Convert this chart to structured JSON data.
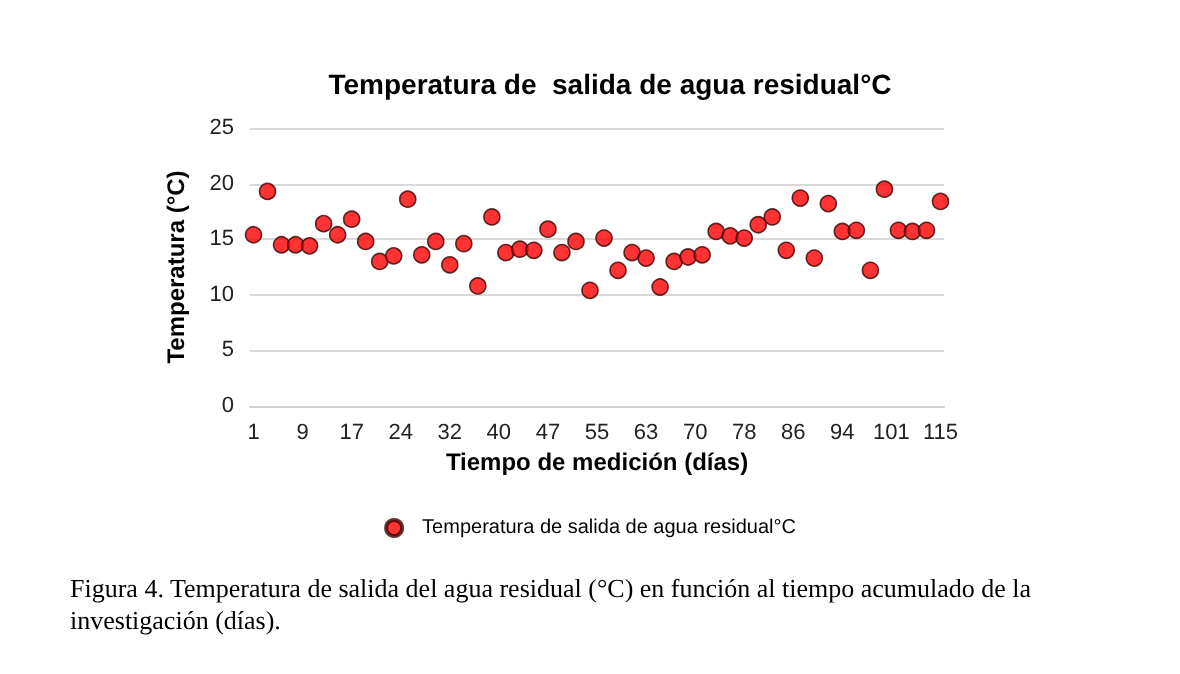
{
  "chart_data": {
    "type": "scatter",
    "title": "Temperatura de  salida de agua residual°C",
    "xlabel": "Tiempo de medición (días)",
    "ylabel": "Temperatura (°C)",
    "categories": [
      "1",
      null,
      null,
      null,
      null,
      null,
      null,
      "9",
      null,
      null,
      null,
      null,
      null,
      null,
      "17",
      null,
      null,
      null,
      null,
      null,
      null,
      "24",
      null,
      null,
      null,
      null,
      null,
      null,
      "32",
      null,
      null,
      null,
      null,
      null,
      null,
      "40",
      null,
      null,
      null,
      null,
      null,
      null,
      "47",
      null,
      null,
      null,
      null,
      null,
      null,
      "55",
      null,
      null,
      null,
      null,
      null,
      null,
      "63",
      null,
      null,
      null,
      null,
      null,
      null,
      "70",
      null,
      null,
      null,
      null,
      null,
      null,
      "78",
      null,
      null,
      null,
      null,
      null,
      null,
      "86",
      null,
      null,
      null,
      null,
      null,
      null,
      "94",
      null,
      null,
      null,
      null,
      null,
      null,
      "101",
      null,
      null,
      null,
      null,
      null,
      null,
      "115"
    ],
    "series": [
      {
        "name": "Temperatura de salida de agua residual°C",
        "color": "#ff0000",
        "values": [
          15.4,
          null,
          19.3,
          null,
          14.5,
          null,
          14.5,
          null,
          14.4,
          null,
          16.4,
          null,
          15.4,
          null,
          16.8,
          null,
          14.8,
          null,
          13.0,
          null,
          13.5,
          null,
          18.6,
          null,
          13.6,
          null,
          14.8,
          null,
          12.7,
          null,
          14.6,
          null,
          10.8,
          null,
          17.0,
          null,
          13.8,
          null,
          14.1,
          null,
          14.0,
          null,
          15.9,
          null,
          13.8,
          null,
          14.8,
          null,
          10.4,
          null,
          15.1,
          null,
          12.2,
          null,
          13.8,
          null,
          13.3,
          null,
          10.7,
          null,
          13.0,
          null,
          13.4,
          null,
          13.6,
          null,
          15.7,
          null,
          15.3,
          null,
          15.1,
          null,
          16.3,
          null,
          17.0,
          null,
          14.0,
          null,
          18.7,
          null,
          13.3,
          null,
          18.2,
          null,
          15.7,
          null,
          15.8,
          null,
          12.2,
          null,
          19.5,
          null,
          15.8,
          null,
          15.7,
          null,
          15.8,
          null,
          18.4
        ]
      }
    ],
    "ylim": [
      0,
      25
    ],
    "yticks": [
      0,
      5,
      10,
      15,
      20,
      25
    ],
    "grid": "y",
    "legend": "bottom",
    "marker": "circle",
    "annotations": [
      "Figura 4. Temperatura de salida del agua residual (°C) en función al tiempo acumulado de la investigación (días)."
    ]
  }
}
